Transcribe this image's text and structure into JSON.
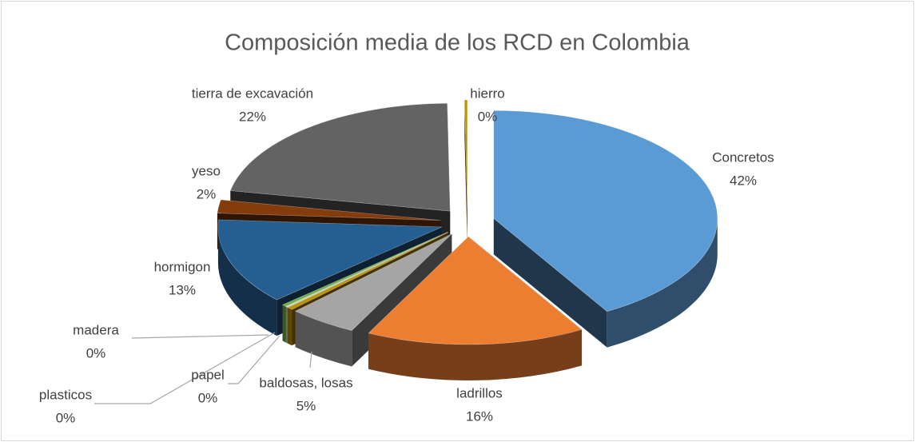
{
  "chart_data": {
    "type": "pie",
    "title": "Composición media de los RCD en Colombia",
    "categories": [
      "Concretos",
      "ladrillos",
      "baldosas, losas",
      "papel",
      "plasticos",
      "madera",
      "hormigon",
      "yeso",
      "tierra de excavación",
      "hierro"
    ],
    "values": [
      42,
      16,
      5,
      0.4,
      0.2,
      0.3,
      13,
      2,
      22,
      0.2
    ],
    "value_labels": [
      "42%",
      "16%",
      "5%",
      "0%",
      "0%",
      "0%",
      "13%",
      "2%",
      "22%",
      "0%"
    ],
    "colors": [
      "#5b9bd5",
      "#ed7d31",
      "#a5a5a5",
      "#bf9000",
      "#c5e0b4",
      "#70ad47",
      "#255e91",
      "#843c0c",
      "#636363",
      "#bf9000"
    ]
  }
}
